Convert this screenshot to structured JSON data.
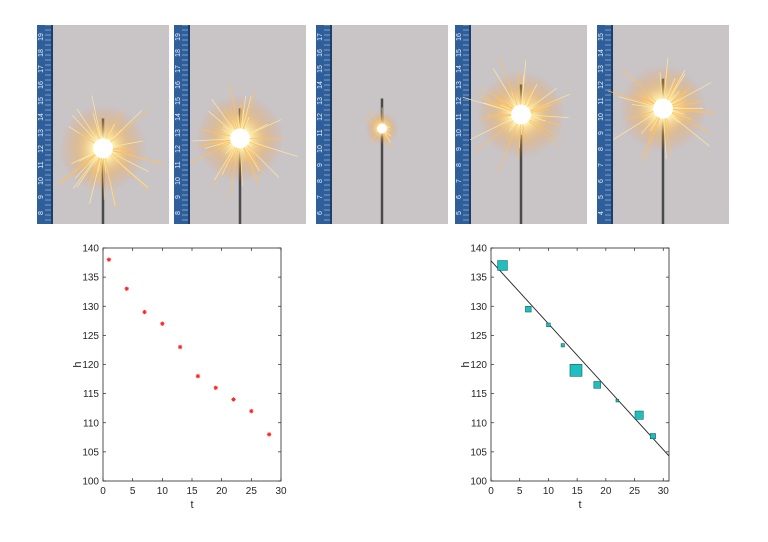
{
  "photos": [
    {
      "ruler_labels": [
        "19",
        "18",
        "17",
        "16",
        "15",
        "14",
        "13",
        "12",
        "11",
        "10",
        "9",
        "8"
      ],
      "burst": "large",
      "burst_level": 0.62
    },
    {
      "ruler_labels": [
        "19",
        "18",
        "17",
        "16",
        "15",
        "14",
        "13",
        "12",
        "11",
        "10",
        "9",
        "8"
      ],
      "burst": "large",
      "burst_level": 0.57
    },
    {
      "ruler_labels": [
        "17",
        "16",
        "15",
        "14",
        "13",
        "12",
        "11",
        "10",
        "9",
        "8",
        "7",
        "6"
      ],
      "burst": "small",
      "burst_level": 0.52
    },
    {
      "ruler_labels": [
        "16",
        "15",
        "14",
        "13",
        "12",
        "11",
        "10",
        "9",
        "8",
        "7",
        "6",
        "5"
      ],
      "burst": "large",
      "burst_level": 0.45
    },
    {
      "ruler_labels": [
        "15",
        "14",
        "13",
        "12",
        "11",
        "10",
        "9",
        "8",
        "7",
        "6",
        "5",
        "4"
      ],
      "burst": "large",
      "burst_level": 0.42
    }
  ],
  "chart_data": [
    {
      "type": "scatter",
      "xlabel": "t",
      "ylabel": "h",
      "xlim": [
        0,
        30
      ],
      "ylim": [
        100,
        140
      ],
      "xticks": [
        0,
        5,
        10,
        15,
        20,
        25,
        30
      ],
      "yticks": [
        100,
        105,
        110,
        115,
        120,
        125,
        130,
        135,
        140
      ],
      "marker": "star",
      "marker_color": "#ff2020",
      "x": [
        1,
        4,
        7,
        10,
        13,
        16,
        19,
        22,
        25,
        28
      ],
      "y": [
        138,
        133,
        129,
        127,
        123,
        118,
        116,
        114,
        112,
        108
      ],
      "grid": false
    },
    {
      "type": "scatter",
      "xlabel": "t",
      "ylabel": "h",
      "xlim": [
        0,
        31
      ],
      "ylim": [
        100,
        140
      ],
      "xticks": [
        0,
        5,
        10,
        15,
        20,
        25,
        30
      ],
      "yticks": [
        100,
        105,
        110,
        115,
        120,
        125,
        130,
        135,
        140
      ],
      "marker": "square",
      "marker_color": "#1fbfbf",
      "x": [
        2,
        6.5,
        10,
        12.5,
        14.8,
        18.5,
        22,
        25.8,
        28.2
      ],
      "y": [
        137,
        129.5,
        126.8,
        123.3,
        119,
        116.5,
        113.8,
        111.3,
        107.7
      ],
      "marker_weight": [
        0.55,
        0.28,
        0.15,
        0.12,
        0.7,
        0.35,
        0.08,
        0.45,
        0.25
      ],
      "fit_line": {
        "x": [
          0,
          31
        ],
        "y": [
          137.8,
          104.3
        ]
      },
      "grid": false
    }
  ]
}
